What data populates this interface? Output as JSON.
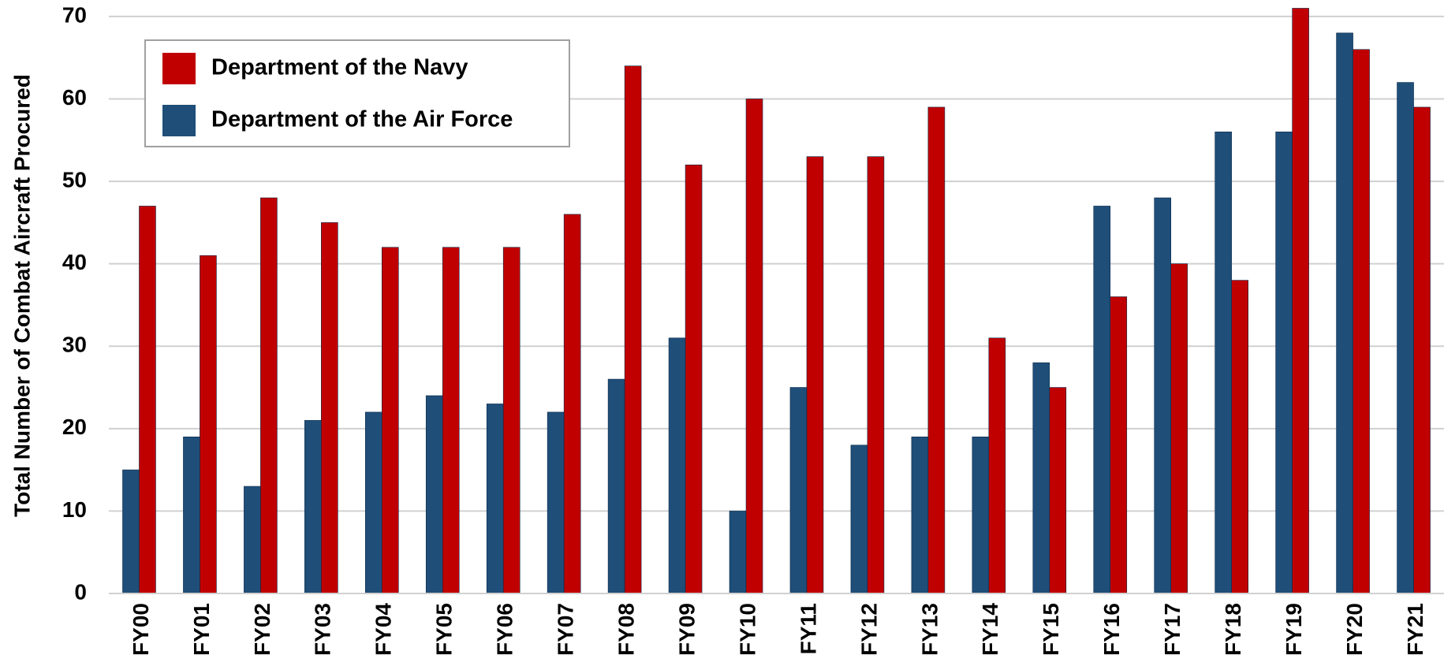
{
  "chart_data": {
    "type": "bar",
    "ylabel": "Total Number of Combat Aircraft Procured",
    "categories": [
      "FY00",
      "FY01",
      "FY02",
      "FY03",
      "FY04",
      "FY05",
      "FY06",
      "FY07",
      "FY08",
      "FY09",
      "FY10",
      "FY11",
      "FY12",
      "FY13",
      "FY14",
      "FY15",
      "FY16",
      "FY17",
      "FY18",
      "FY19",
      "FY20",
      "FY21"
    ],
    "series": [
      {
        "name": "Department of the Air Force",
        "color": "#1f4e79",
        "values": [
          15,
          19,
          13,
          21,
          22,
          24,
          23,
          22,
          26,
          31,
          10,
          25,
          18,
          19,
          19,
          28,
          47,
          48,
          56,
          56,
          68,
          62
        ]
      },
      {
        "name": "Department of the Navy",
        "color": "#c00000",
        "values": [
          47,
          41,
          48,
          45,
          42,
          42,
          42,
          46,
          64,
          52,
          60,
          53,
          53,
          59,
          31,
          25,
          36,
          40,
          38,
          71,
          66,
          59
        ]
      }
    ],
    "ylim": [
      0,
      72
    ],
    "yticks": [
      0,
      10,
      20,
      30,
      40,
      50,
      60,
      70
    ],
    "grid": true,
    "legend": "upper left"
  }
}
